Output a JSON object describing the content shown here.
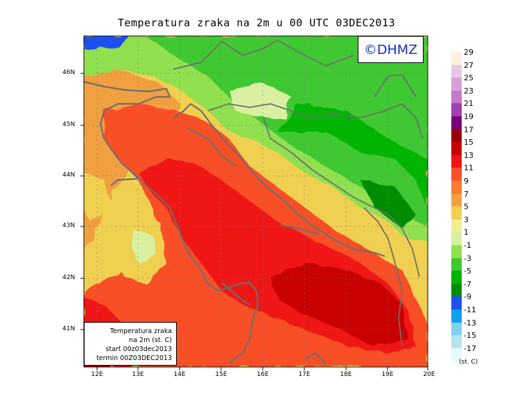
{
  "title": "Temperatura zraka na 2m u 00 UTC 03DEC2013",
  "logo": "©DHMZ",
  "info": {
    "line1": "Temperatura zraka",
    "line2": "na 2m (st. C)",
    "line3": "start 00z03dec2013",
    "line4": "termin 00Z03DEC2013"
  },
  "lat_labels": [
    "46N",
    "45N",
    "44N",
    "43N",
    "42N",
    "41N"
  ],
  "lon_labels": [
    "12E",
    "13E",
    "14E",
    "15E",
    "16E",
    "17E",
    "18E",
    "19E",
    "20E"
  ],
  "legend": {
    "unit": "(st. C)",
    "labels": [
      "29",
      "27",
      "25",
      "23",
      "21",
      "19",
      "17",
      "15",
      "13",
      "11",
      "9",
      "7",
      "5",
      "3",
      "1",
      "-1",
      "-3",
      "-5",
      "-7",
      "-9",
      "-11",
      "-13",
      "-15",
      "-17"
    ],
    "colors": [
      "#fdf0e0",
      "#e6c8e6",
      "#d8a0d8",
      "#c878c8",
      "#a040b0",
      "#780078",
      "#9a0000",
      "#c80000",
      "#f01414",
      "#f85028",
      "#f87c30",
      "#f0a040",
      "#f0d050",
      "#f0f090",
      "#d8f0a0",
      "#90e050",
      "#40c830",
      "#00b400",
      "#008c00",
      "#1e50f0",
      "#10a0f0",
      "#80d0f0",
      "#b4e4f0",
      "#e6faff"
    ]
  }
}
